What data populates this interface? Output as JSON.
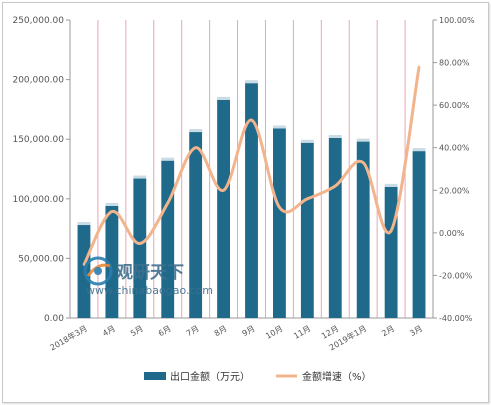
{
  "chart_data": {
    "type": "bar",
    "categories": [
      "2018年3月",
      "4月",
      "5月",
      "6月",
      "7月",
      "8月",
      "9月",
      "10月",
      "11月",
      "12月",
      "2019年1月",
      "2月",
      "3月"
    ],
    "series": [
      {
        "name": "出口金额（万元）",
        "type": "bar",
        "axis": "left",
        "values": [
          78000,
          94000,
          117000,
          132000,
          156000,
          183000,
          197000,
          159000,
          147000,
          151000,
          148000,
          110000,
          140000
        ]
      },
      {
        "name": "金额增速（%）",
        "type": "line",
        "axis": "right",
        "values": [
          -15.0,
          10.0,
          -5.0,
          14.0,
          40.0,
          20.0,
          53.0,
          12.0,
          16.0,
          22.0,
          33.0,
          1.0,
          78.0
        ]
      }
    ],
    "y_left": {
      "ylim": [
        0,
        250000
      ],
      "ticks": [
        "0.00",
        "50,000.00",
        "100,000.00",
        "150,000.00",
        "200,000.00",
        "250,000.00"
      ]
    },
    "y_right": {
      "ylim": [
        -40,
        100
      ],
      "ticks": [
        "-40.00%",
        "-20.00%",
        "0.00%",
        "20.00%",
        "40.00%",
        "60.00%",
        "80.00%",
        "100.00%"
      ]
    },
    "grid": "vertical",
    "legend_position": "bottom",
    "colors": {
      "bar": "#1f6a8a",
      "bar_top": "#c9dbe4",
      "line": "#f2b48c",
      "grid": "#e5a8b4",
      "axis_text": "#555555"
    }
  },
  "watermark": {
    "brand": "观研天下",
    "url": "www.chinabaogao.com"
  }
}
